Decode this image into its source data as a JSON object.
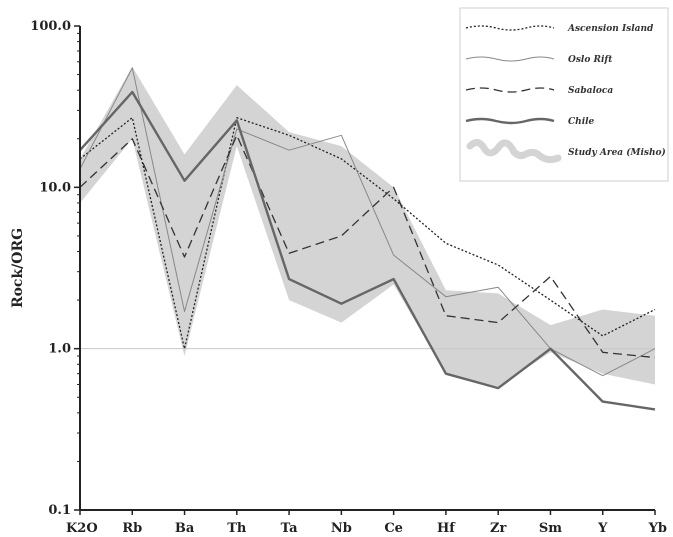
{
  "chart_data": {
    "type": "line",
    "y_scale": "log",
    "ylim": [
      0.1,
      100.0
    ],
    "ylabel": "Rock/ORG",
    "xlabel": "",
    "title": "",
    "y_tick_labels": [
      "100.0",
      "10.0",
      "1.0",
      "0.1"
    ],
    "reference_line": 1.0,
    "categories": [
      "K2O",
      "Rb",
      "Ba",
      "Th",
      "Ta",
      "Nb",
      "Ce",
      "Hf",
      "Zr",
      "Sm",
      "Y",
      "Yb"
    ],
    "legend_position": "top-right",
    "series": [
      {
        "name": "Ascension Island",
        "style": "dotted",
        "color": "#222222",
        "values": [
          15,
          27,
          1.0,
          27,
          21,
          15,
          8.5,
          4.5,
          3.3,
          2.0,
          1.2,
          1.75
        ]
      },
      {
        "name": "Oslo Rift",
        "style": "solid-thin",
        "color": "#888888",
        "values": [
          13,
          55,
          1.7,
          23,
          17,
          21,
          3.8,
          2.1,
          2.4,
          1.0,
          0.68,
          1.0
        ]
      },
      {
        "name": "Sabaloca",
        "style": "dashed",
        "color": "#333333",
        "values": [
          10,
          20,
          3.7,
          21,
          3.9,
          5.0,
          10,
          1.6,
          1.45,
          2.8,
          0.95,
          0.88
        ]
      },
      {
        "name": "Chile",
        "style": "solid-thick",
        "color": "#666666",
        "values": [
          17,
          39,
          11,
          26,
          2.7,
          1.9,
          2.7,
          0.7,
          0.57,
          1.0,
          0.47,
          0.42
        ]
      }
    ],
    "band": {
      "name": "Study Area (Misho)",
      "color": "#d4d4d4",
      "upper": [
        15,
        56,
        16,
        43,
        22,
        18,
        10,
        2.3,
        2.2,
        1.4,
        1.75,
        1.6
      ],
      "lower": [
        8,
        20,
        0.9,
        18,
        2.0,
        1.45,
        2.5,
        0.7,
        0.58,
        0.95,
        0.7,
        0.6
      ]
    }
  },
  "legend": {
    "items": [
      {
        "label": "Ascension Island",
        "style": "dotted"
      },
      {
        "label": "Oslo Rift",
        "style": "solid-thin"
      },
      {
        "label": "Sabaloca",
        "style": "dashed"
      },
      {
        "label": "Chile",
        "style": "solid-thick"
      },
      {
        "label": "Study Area (Misho)",
        "style": "band"
      }
    ]
  }
}
